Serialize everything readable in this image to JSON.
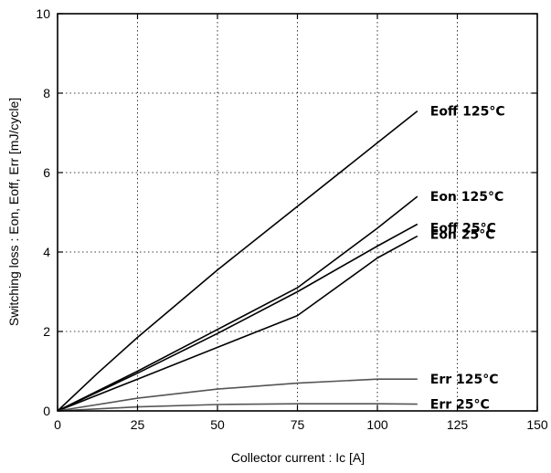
{
  "chart_data": {
    "type": "line",
    "title": "",
    "xlabel": "Collector current  :  Ic  [A]",
    "ylabel": "Switching loss  :  Eon, Eoff, Err  [mJ/cycle]",
    "xlim": [
      0,
      150
    ],
    "ylim": [
      0,
      10
    ],
    "xticks": [
      0,
      25,
      50,
      75,
      100,
      125,
      150
    ],
    "yticks": [
      0,
      2,
      4,
      6,
      8,
      10
    ],
    "grid": true,
    "legend": "inline labels at right end of each curve",
    "series": [
      {
        "name": "Eoff  125°C",
        "color": "#000000",
        "x": [
          0,
          12.5,
          25,
          50,
          75,
          100,
          112.5
        ],
        "y": [
          0,
          0.95,
          1.85,
          3.55,
          5.15,
          6.75,
          7.55
        ]
      },
      {
        "name": "Eon  125°C",
        "color": "#000000",
        "x": [
          0,
          25,
          50,
          75,
          100,
          112.5
        ],
        "y": [
          0,
          1.0,
          2.05,
          3.1,
          4.6,
          5.4
        ]
      },
      {
        "name": "Eoff  25°C",
        "color": "#000000",
        "x": [
          0,
          25,
          50,
          75,
          100,
          112.5
        ],
        "y": [
          0,
          0.95,
          1.95,
          3.0,
          4.15,
          4.7
        ]
      },
      {
        "name": "Eon  25°C",
        "color": "#000000",
        "x": [
          0,
          25,
          50,
          75,
          100,
          112.5
        ],
        "y": [
          0,
          0.8,
          1.6,
          2.4,
          3.85,
          4.4
        ]
      },
      {
        "name": "Err  125°C",
        "color": "#555555",
        "x": [
          0,
          25,
          50,
          75,
          100,
          112.5
        ],
        "y": [
          0,
          0.32,
          0.55,
          0.7,
          0.8,
          0.8
        ]
      },
      {
        "name": "Err  25°C",
        "color": "#555555",
        "x": [
          0,
          25,
          50,
          75,
          100,
          112.5
        ],
        "y": [
          0,
          0.1,
          0.16,
          0.18,
          0.18,
          0.17
        ]
      }
    ]
  }
}
